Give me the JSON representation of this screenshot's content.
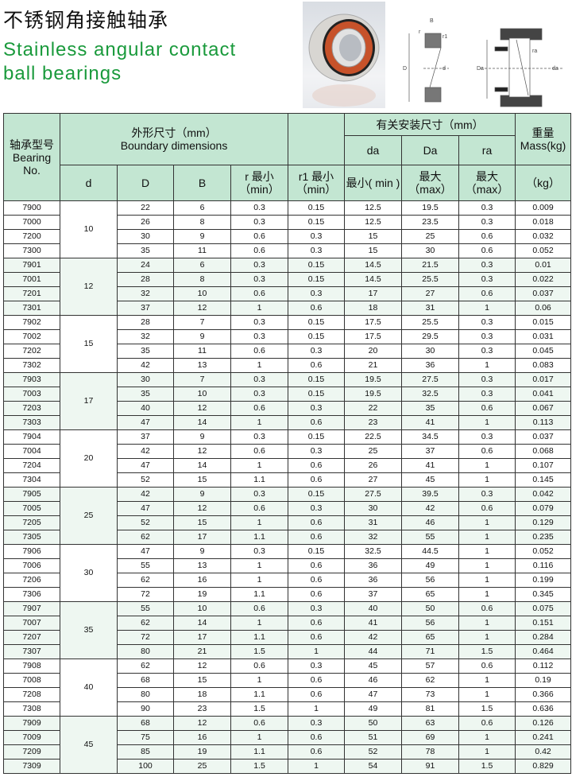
{
  "title": {
    "cn": "不锈钢角接触轴承",
    "en_line1": "Stainless angular contact",
    "en_line2": "ball bearings"
  },
  "diagram_labels": {
    "B": "B",
    "r": "r",
    "r1": "r1",
    "D": "D",
    "d": "d",
    "Da": "Da",
    "da": "da",
    "ra": "ra"
  },
  "header": {
    "bearing_no": [
      "轴承型号",
      "Bearing",
      "No."
    ],
    "boundary": [
      "外形尺寸（mm）",
      "Boundary dimensions"
    ],
    "mounting": "有关安装尺寸（mm）",
    "mass": [
      "重量",
      "Mass(kg)"
    ],
    "da": "da",
    "Da": "Da",
    "ra": "ra",
    "d": "d",
    "D": "D",
    "B": "B",
    "r_min": [
      "r 最小",
      "（min）"
    ],
    "r1_min": [
      "r1 最小",
      "（min）"
    ],
    "da_min": "最小( min )",
    "Da_max": [
      "最大",
      "（max）"
    ],
    "ra_max": [
      "最大",
      "（max）"
    ],
    "kg": "（kg）"
  },
  "colors": {
    "header_bg": "#c3e6d2",
    "shade_bg": "#eef7f1",
    "title_green": "#1a9a3c"
  },
  "groups": [
    {
      "d": "10",
      "rows": [
        [
          "7900",
          "22",
          "6",
          "0.3",
          "0.15",
          "12.5",
          "19.5",
          "0.3",
          "0.009"
        ],
        [
          "7000",
          "26",
          "8",
          "0.3",
          "0.15",
          "12.5",
          "23.5",
          "0.3",
          "0.018"
        ],
        [
          "7200",
          "30",
          "9",
          "0.6",
          "0.3",
          "15",
          "25",
          "0.6",
          "0.032"
        ],
        [
          "7300",
          "35",
          "11",
          "0.6",
          "0.3",
          "15",
          "30",
          "0.6",
          "0.052"
        ]
      ]
    },
    {
      "d": "12",
      "rows": [
        [
          "7901",
          "24",
          "6",
          "0.3",
          "0.15",
          "14.5",
          "21.5",
          "0.3",
          "0.01"
        ],
        [
          "7001",
          "28",
          "8",
          "0.3",
          "0.15",
          "14.5",
          "25.5",
          "0.3",
          "0.022"
        ],
        [
          "7201",
          "32",
          "10",
          "0.6",
          "0.3",
          "17",
          "27",
          "0.6",
          "0.037"
        ],
        [
          "7301",
          "37",
          "12",
          "1",
          "0.6",
          "18",
          "31",
          "1",
          "0.06"
        ]
      ]
    },
    {
      "d": "15",
      "rows": [
        [
          "7902",
          "28",
          "7",
          "0.3",
          "0.15",
          "17.5",
          "25.5",
          "0.3",
          "0.015"
        ],
        [
          "7002",
          "32",
          "9",
          "0.3",
          "0.15",
          "17.5",
          "29.5",
          "0.3",
          "0.031"
        ],
        [
          "7202",
          "35",
          "11",
          "0.6",
          "0.3",
          "20",
          "30",
          "0.3",
          "0.045"
        ],
        [
          "7302",
          "42",
          "13",
          "1",
          "0.6",
          "21",
          "36",
          "1",
          "0.083"
        ]
      ]
    },
    {
      "d": "17",
      "rows": [
        [
          "7903",
          "30",
          "7",
          "0.3",
          "0.15",
          "19.5",
          "27.5",
          "0.3",
          "0.017"
        ],
        [
          "7003",
          "35",
          "10",
          "0.3",
          "0.15",
          "19.5",
          "32.5",
          "0.3",
          "0.041"
        ],
        [
          "7203",
          "40",
          "12",
          "0.6",
          "0.3",
          "22",
          "35",
          "0.6",
          "0.067"
        ],
        [
          "7303",
          "47",
          "14",
          "1",
          "0.6",
          "23",
          "41",
          "1",
          "0.113"
        ]
      ]
    },
    {
      "d": "20",
      "rows": [
        [
          "7904",
          "37",
          "9",
          "0.3",
          "0.15",
          "22.5",
          "34.5",
          "0.3",
          "0.037"
        ],
        [
          "7004",
          "42",
          "12",
          "0.6",
          "0.3",
          "25",
          "37",
          "0.6",
          "0.068"
        ],
        [
          "7204",
          "47",
          "14",
          "1",
          "0.6",
          "26",
          "41",
          "1",
          "0.107"
        ],
        [
          "7304",
          "52",
          "15",
          "1.1",
          "0.6",
          "27",
          "45",
          "1",
          "0.145"
        ]
      ]
    },
    {
      "d": "25",
      "rows": [
        [
          "7905",
          "42",
          "9",
          "0.3",
          "0.15",
          "27.5",
          "39.5",
          "0.3",
          "0.042"
        ],
        [
          "7005",
          "47",
          "12",
          "0.6",
          "0.3",
          "30",
          "42",
          "0.6",
          "0.079"
        ],
        [
          "7205",
          "52",
          "15",
          "1",
          "0.6",
          "31",
          "46",
          "1",
          "0.129"
        ],
        [
          "7305",
          "62",
          "17",
          "1.1",
          "0.6",
          "32",
          "55",
          "1",
          "0.235"
        ]
      ]
    },
    {
      "d": "30",
      "rows": [
        [
          "7906",
          "47",
          "9",
          "0.3",
          "0.15",
          "32.5",
          "44.5",
          "1",
          "0.052"
        ],
        [
          "7006",
          "55",
          "13",
          "1",
          "0.6",
          "36",
          "49",
          "1",
          "0.116"
        ],
        [
          "7206",
          "62",
          "16",
          "1",
          "0.6",
          "36",
          "56",
          "1",
          "0.199"
        ],
        [
          "7306",
          "72",
          "19",
          "1.1",
          "0.6",
          "37",
          "65",
          "1",
          "0.345"
        ]
      ]
    },
    {
      "d": "35",
      "rows": [
        [
          "7907",
          "55",
          "10",
          "0.6",
          "0.3",
          "40",
          "50",
          "0.6",
          "0.075"
        ],
        [
          "7007",
          "62",
          "14",
          "1",
          "0.6",
          "41",
          "56",
          "1",
          "0.151"
        ],
        [
          "7207",
          "72",
          "17",
          "1.1",
          "0.6",
          "42",
          "65",
          "1",
          "0.284"
        ],
        [
          "7307",
          "80",
          "21",
          "1.5",
          "1",
          "44",
          "71",
          "1.5",
          "0.464"
        ]
      ]
    },
    {
      "d": "40",
      "rows": [
        [
          "7908",
          "62",
          "12",
          "0.6",
          "0.3",
          "45",
          "57",
          "0.6",
          "0.112"
        ],
        [
          "7008",
          "68",
          "15",
          "1",
          "0.6",
          "46",
          "62",
          "1",
          "0.19"
        ],
        [
          "7208",
          "80",
          "18",
          "1.1",
          "0.6",
          "47",
          "73",
          "1",
          "0.366"
        ],
        [
          "7308",
          "90",
          "23",
          "1.5",
          "1",
          "49",
          "81",
          "1.5",
          "0.636"
        ]
      ]
    },
    {
      "d": "45",
      "rows": [
        [
          "7909",
          "68",
          "12",
          "0.6",
          "0.3",
          "50",
          "63",
          "0.6",
          "0.126"
        ],
        [
          "7009",
          "75",
          "16",
          "1",
          "0.6",
          "51",
          "69",
          "1",
          "0.241"
        ],
        [
          "7209",
          "85",
          "19",
          "1.1",
          "0.6",
          "52",
          "78",
          "1",
          "0.42"
        ],
        [
          "7309",
          "100",
          "25",
          "1.5",
          "1",
          "54",
          "91",
          "1.5",
          "0.829"
        ]
      ]
    }
  ]
}
